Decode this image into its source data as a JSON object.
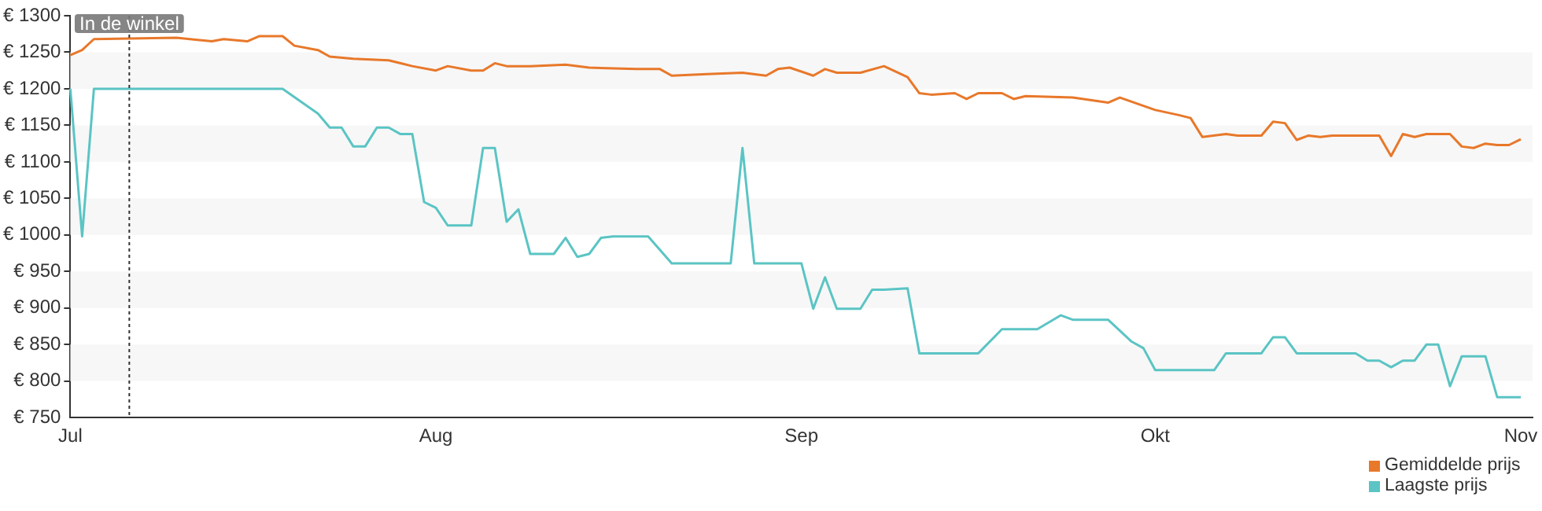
{
  "chart_data": {
    "type": "line",
    "xlim": [
      "--07-01",
      "--11-02"
    ],
    "xticks": [
      {
        "value": "--07-01",
        "label": "Jul"
      },
      {
        "value": "--08-01",
        "label": "Aug"
      },
      {
        "value": "--09-01",
        "label": "Sep"
      },
      {
        "value": "--10-01",
        "label": "Okt"
      },
      {
        "value": "--11-01",
        "label": "Nov"
      }
    ],
    "ylim": [
      750,
      1300
    ],
    "yticks": [
      {
        "value": 750,
        "label": "€ 750"
      },
      {
        "value": 800,
        "label": "€ 800"
      },
      {
        "value": 850,
        "label": "€ 850"
      },
      {
        "value": 900,
        "label": "€ 900"
      },
      {
        "value": 950,
        "label": "€ 950"
      },
      {
        "value": 1000,
        "label": "€ 1000"
      },
      {
        "value": 1050,
        "label": "€ 1050"
      },
      {
        "value": 1100,
        "label": "€ 1100"
      },
      {
        "value": 1150,
        "label": "€ 1150"
      },
      {
        "value": 1200,
        "label": "€ 1200"
      },
      {
        "value": 1250,
        "label": "€ 1250"
      },
      {
        "value": 1300,
        "label": "€ 1300"
      }
    ],
    "bands": [
      {
        "axis": "y",
        "from": 800,
        "to": 850,
        "color": "#f7f7f7"
      },
      {
        "axis": "y",
        "from": 900,
        "to": 950,
        "color": "#f7f7f7"
      },
      {
        "axis": "y",
        "from": 1000,
        "to": 1050,
        "color": "#f7f7f7"
      },
      {
        "axis": "y",
        "from": 1100,
        "to": 1150,
        "color": "#f7f7f7"
      },
      {
        "axis": "y",
        "from": 1200,
        "to": 1250,
        "color": "#f7f7f7"
      }
    ],
    "legend": "bottom right",
    "marker": "none",
    "line_style": "solid",
    "ref_lines": [
      {
        "axis": "x",
        "value": "--07-06",
        "label": "In de winkel",
        "color": "#333333",
        "line_style": "dotted"
      }
    ],
    "series": [
      {
        "name": "Gemiddelde prijs",
        "color": "#e8782a",
        "x": [
          "--07-01",
          "--07-02",
          "--07-03",
          "--07-10",
          "--07-13",
          "--07-14",
          "--07-16",
          "--07-17",
          "--07-19",
          "--07-20",
          "--07-22",
          "--07-23",
          "--07-25",
          "--07-28",
          "--07-30",
          "--08-01",
          "--08-02",
          "--08-04",
          "--08-05",
          "--08-06",
          "--08-07",
          "--08-09",
          "--08-12",
          "--08-14",
          "--08-18",
          "--08-20",
          "--08-21",
          "--08-24",
          "--08-27",
          "--08-29",
          "--08-30",
          "--08-31",
          "--09-02",
          "--09-03",
          "--09-04",
          "--09-06",
          "--09-08",
          "--09-10",
          "--09-11",
          "--09-12",
          "--09-14",
          "--09-15",
          "--09-16",
          "--09-18",
          "--09-19",
          "--09-20",
          "--09-24",
          "--09-27",
          "--09-28",
          "--10-01",
          "--10-03",
          "--10-04",
          "--10-05",
          "--10-07",
          "--10-08",
          "--10-10",
          "--10-11",
          "--10-12",
          "--10-13",
          "--10-14",
          "--10-15",
          "--10-16",
          "--10-20",
          "--10-21",
          "--10-22",
          "--10-23",
          "--10-24",
          "--10-26",
          "--10-27",
          "--10-28",
          "--10-29",
          "--10-30",
          "--10-31",
          "--11-01"
        ],
        "values": [
          1246,
          1253,
          1268,
          1270,
          1265,
          1268,
          1265,
          1272,
          1272,
          1259,
          1253,
          1244,
          1241,
          1239,
          1231,
          1225,
          1231,
          1225,
          1225,
          1235,
          1231,
          1231,
          1233,
          1229,
          1227,
          1227,
          1218,
          1220,
          1222,
          1218,
          1227,
          1229,
          1218,
          1227,
          1222,
          1222,
          1231,
          1216,
          1194,
          1192,
          1194,
          1186,
          1194,
          1194,
          1186,
          1190,
          1188,
          1181,
          1188,
          1171,
          1164,
          1160,
          1134,
          1138,
          1136,
          1136,
          1155,
          1153,
          1130,
          1136,
          1134,
          1136,
          1136,
          1108,
          1138,
          1134,
          1138,
          1138,
          1121,
          1119,
          1125,
          1123,
          1123,
          1131
        ]
      },
      {
        "name": "Laagste prijs",
        "color": "#5bc4c4",
        "x": [
          "--07-01",
          "--07-02",
          "--07-03",
          "--07-19",
          "--07-22",
          "--07-23",
          "--07-24",
          "--07-25",
          "--07-26",
          "--07-27",
          "--07-28",
          "--07-29",
          "--07-30",
          "--07-31",
          "--08-01",
          "--08-02",
          "--08-04",
          "--08-05",
          "--08-06",
          "--08-07",
          "--08-08",
          "--08-09",
          "--08-11",
          "--08-12",
          "--08-13",
          "--08-14",
          "--08-15",
          "--08-16",
          "--08-19",
          "--08-21",
          "--08-26",
          "--08-27",
          "--08-28",
          "--09-01",
          "--09-02",
          "--09-03",
          "--09-04",
          "--09-06",
          "--09-07",
          "--09-08",
          "--09-10",
          "--09-11",
          "--09-16",
          "--09-18",
          "--09-21",
          "--09-23",
          "--09-24",
          "--09-27",
          "--09-29",
          "--09-30",
          "--10-01",
          "--10-06",
          "--10-07",
          "--10-10",
          "--10-11",
          "--10-12",
          "--10-13",
          "--10-18",
          "--10-19",
          "--10-20",
          "--10-21",
          "--10-22",
          "--10-23",
          "--10-24",
          "--10-25",
          "--10-26",
          "--10-27",
          "--10-29",
          "--10-30",
          "--11-01"
        ],
        "values": [
          1200,
          998,
          1200,
          1200,
          1166,
          1147,
          1147,
          1121,
          1121,
          1147,
          1147,
          1138,
          1138,
          1045,
          1037,
          1013,
          1013,
          1119,
          1119,
          1018,
          1035,
          974,
          974,
          996,
          970,
          974,
          996,
          998,
          998,
          961,
          961,
          1119,
          961,
          961,
          899,
          942,
          899,
          899,
          925,
          925,
          927,
          838,
          838,
          871,
          871,
          890,
          884,
          884,
          854,
          845,
          815,
          815,
          838,
          838,
          860,
          860,
          838,
          838,
          828,
          828,
          819,
          828,
          828,
          850,
          850,
          793,
          834,
          834,
          778,
          778
        ]
      }
    ]
  }
}
